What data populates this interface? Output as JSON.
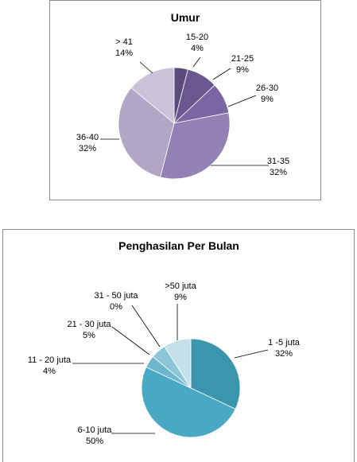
{
  "chart_data": [
    {
      "type": "pie",
      "title": "Umur",
      "categories": [
        "15-20",
        "21-25",
        "26-30",
        "31-35",
        "36-40",
        "> 41"
      ],
      "values": [
        4,
        9,
        9,
        32,
        32,
        14
      ],
      "value_labels": [
        "4%",
        "9%",
        "9%",
        "32%",
        "32%",
        "14%"
      ],
      "colors": [
        "#5b4a7c",
        "#6a5790",
        "#7a66a2",
        "#9381b5",
        "#b1a6c6",
        "#cac2d9"
      ],
      "legend": "none",
      "data_labels": "outside with leader lines"
    },
    {
      "type": "pie",
      "title": "Penghasilan Per Bulan",
      "categories": [
        "1 -5 juta",
        "6-10 juta",
        "11 - 20 juta",
        "21 - 30 juta",
        "31 - 50 juta",
        ">50 juta"
      ],
      "values": [
        32,
        50,
        4,
        5,
        0,
        9
      ],
      "value_labels": [
        "32%",
        "50%",
        "4%",
        "5%",
        "0%",
        "9%"
      ],
      "colors": [
        "#3b96ad",
        "#49a9c4",
        "#6cb7cb",
        "#8dc6d6",
        "#a8d3df",
        "#c4e1ea"
      ],
      "legend": "none",
      "data_labels": "outside with leader lines"
    }
  ]
}
